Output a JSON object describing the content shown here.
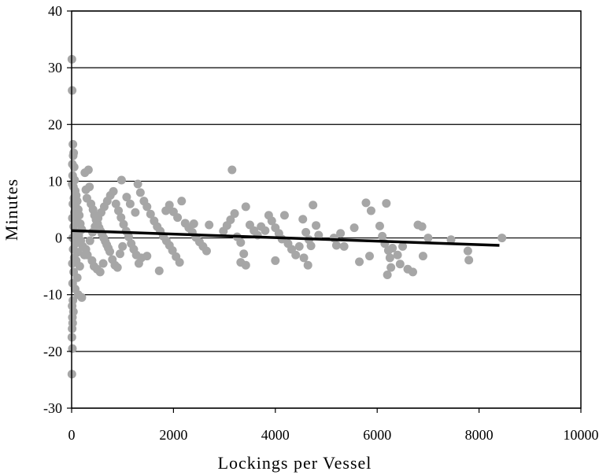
{
  "chart_data": {
    "type": "scatter",
    "xlabel": "Lockings per Vessel",
    "ylabel": "Minutes",
    "xlim": [
      0,
      10000
    ],
    "ylim": [
      -30,
      40
    ],
    "xticks": [
      "0",
      "2000",
      "4000",
      "6000",
      "8000",
      "10000"
    ],
    "yticks": [
      "40",
      "30",
      "20",
      "10",
      "0",
      "-10",
      "-20",
      "-30"
    ],
    "grid": "horizontal",
    "legend": "none",
    "point_color": "#a6a6a6",
    "trendline_color": "#000000",
    "trendline": {
      "x": [
        0,
        8400
      ],
      "y": [
        1.3,
        -1.3
      ]
    },
    "points": [
      [
        5,
        31.5
      ],
      [
        10,
        26
      ],
      [
        25,
        16.5
      ],
      [
        40,
        15
      ],
      [
        30,
        14.5
      ],
      [
        15,
        13
      ],
      [
        50,
        12.5
      ],
      [
        20,
        11
      ],
      [
        60,
        10.2
      ],
      [
        10,
        9.5
      ],
      [
        35,
        9
      ],
      [
        70,
        8.3
      ],
      [
        90,
        7.5
      ],
      [
        45,
        7
      ],
      [
        110,
        6.5
      ],
      [
        25,
        6
      ],
      [
        80,
        5.5
      ],
      [
        130,
        5
      ],
      [
        55,
        4.5
      ],
      [
        150,
        4
      ],
      [
        15,
        3.5
      ],
      [
        100,
        3
      ],
      [
        170,
        2.5
      ],
      [
        40,
        2
      ],
      [
        200,
        1.5
      ],
      [
        65,
        1
      ],
      [
        140,
        0.5
      ],
      [
        20,
        0
      ],
      [
        180,
        -0.5
      ],
      [
        75,
        -1
      ],
      [
        220,
        -1.5
      ],
      [
        30,
        -2
      ],
      [
        120,
        -2.5
      ],
      [
        250,
        -3
      ],
      [
        50,
        -3.5
      ],
      [
        90,
        -4
      ],
      [
        15,
        -4.5
      ],
      [
        160,
        -5
      ],
      [
        40,
        -6
      ],
      [
        110,
        -7
      ],
      [
        20,
        -8
      ],
      [
        70,
        -9
      ],
      [
        130,
        -10
      ],
      [
        200,
        -10.5
      ],
      [
        25,
        -11
      ],
      [
        10,
        -12
      ],
      [
        35,
        -13
      ],
      [
        15,
        -14
      ],
      [
        20,
        -15
      ],
      [
        10,
        -16
      ],
      [
        5,
        -17.5
      ],
      [
        15,
        -19.5
      ],
      [
        5,
        -24
      ],
      [
        260,
        11.5
      ],
      [
        330,
        12
      ],
      [
        280,
        8.5
      ],
      [
        350,
        9
      ],
      [
        300,
        7
      ],
      [
        380,
        6
      ],
      [
        420,
        5
      ],
      [
        450,
        4
      ],
      [
        480,
        3.2
      ],
      [
        510,
        2.5
      ],
      [
        540,
        1.8
      ],
      [
        570,
        1.2
      ],
      [
        600,
        0.6
      ],
      [
        630,
        0
      ],
      [
        660,
        -0.6
      ],
      [
        690,
        -1.2
      ],
      [
        720,
        -1.8
      ],
      [
        750,
        -2.4
      ],
      [
        310,
        -3
      ],
      [
        400,
        -4
      ],
      [
        440,
        -5
      ],
      [
        500,
        -5.5
      ],
      [
        560,
        -6
      ],
      [
        620,
        -4.5
      ],
      [
        280,
        -2
      ],
      [
        360,
        -0.5
      ],
      [
        410,
        1
      ],
      [
        460,
        2
      ],
      [
        520,
        3.5
      ],
      [
        580,
        4.5
      ],
      [
        640,
        5.5
      ],
      [
        700,
        6.5
      ],
      [
        760,
        7.5
      ],
      [
        820,
        8.2
      ],
      [
        870,
        6
      ],
      [
        920,
        4.8
      ],
      [
        970,
        3.6
      ],
      [
        1020,
        2.4
      ],
      [
        1070,
        1.2
      ],
      [
        1120,
        0.2
      ],
      [
        1170,
        -1
      ],
      [
        1220,
        -2
      ],
      [
        1270,
        -3
      ],
      [
        1320,
        -4.5
      ],
      [
        1370,
        -3.5
      ],
      [
        800,
        -3.8
      ],
      [
        850,
        -4.8
      ],
      [
        900,
        -5.2
      ],
      [
        950,
        -2.8
      ],
      [
        1000,
        -1.5
      ],
      [
        980,
        10.2
      ],
      [
        1300,
        9.5
      ],
      [
        1350,
        8
      ],
      [
        1420,
        6.5
      ],
      [
        1480,
        5.5
      ],
      [
        1550,
        4.2
      ],
      [
        1620,
        3
      ],
      [
        1680,
        2
      ],
      [
        1740,
        1.2
      ],
      [
        1800,
        0.3
      ],
      [
        1860,
        -0.5
      ],
      [
        1920,
        -1.3
      ],
      [
        1980,
        -2.2
      ],
      [
        2050,
        -3.3
      ],
      [
        2120,
        -4.3
      ],
      [
        1720,
        -5.8
      ],
      [
        1850,
        4.8
      ],
      [
        1920,
        5.8
      ],
      [
        2000,
        4.6
      ],
      [
        2080,
        3.6
      ],
      [
        2160,
        6.5
      ],
      [
        2230,
        2.6
      ],
      [
        2300,
        1.8
      ],
      [
        2370,
        1
      ],
      [
        2440,
        0.1
      ],
      [
        2510,
        -0.7
      ],
      [
        2580,
        -1.5
      ],
      [
        2650,
        -2.3
      ],
      [
        2400,
        2.5
      ],
      [
        2700,
        2.3
      ],
      [
        1480,
        -3.2
      ],
      [
        1250,
        4.5
      ],
      [
        1150,
        6
      ],
      [
        1080,
        7.2
      ],
      [
        3150,
        12
      ],
      [
        3200,
        4.3
      ],
      [
        3120,
        3.2
      ],
      [
        3050,
        2.2
      ],
      [
        2980,
        1.2
      ],
      [
        3250,
        0.2
      ],
      [
        3320,
        -0.8
      ],
      [
        3380,
        -2.8
      ],
      [
        3420,
        -4.8
      ],
      [
        3320,
        -4.3
      ],
      [
        3420,
        5.5
      ],
      [
        3500,
        2.3
      ],
      [
        3580,
        1.3
      ],
      [
        3650,
        0.5
      ],
      [
        3720,
        2
      ],
      [
        3800,
        1.3
      ],
      [
        3870,
        4
      ],
      [
        3930,
        3
      ],
      [
        4000,
        1.8
      ],
      [
        4070,
        0.8
      ],
      [
        4130,
        -0.2
      ],
      [
        4180,
        4
      ],
      [
        4000,
        -4
      ],
      [
        4250,
        -1
      ],
      [
        4320,
        -2
      ],
      [
        4400,
        -3
      ],
      [
        4470,
        -1.5
      ],
      [
        4540,
        3.3
      ],
      [
        4600,
        1
      ],
      [
        4660,
        -0.3
      ],
      [
        4700,
        -1.4
      ],
      [
        4740,
        5.8
      ],
      [
        4800,
        2.2
      ],
      [
        4850,
        0.5
      ],
      [
        4560,
        -3.5
      ],
      [
        4640,
        -4.8
      ],
      [
        5150,
        0
      ],
      [
        5200,
        -1.3
      ],
      [
        5280,
        0.8
      ],
      [
        5350,
        -1.5
      ],
      [
        5550,
        1.8
      ],
      [
        5650,
        -4.2
      ],
      [
        5780,
        6.2
      ],
      [
        5880,
        4.8
      ],
      [
        5850,
        -3.2
      ],
      [
        6050,
        2.1
      ],
      [
        6100,
        0.3
      ],
      [
        6150,
        -1
      ],
      [
        6180,
        6.1
      ],
      [
        6220,
        -2.2
      ],
      [
        6250,
        -3.5
      ],
      [
        6270,
        -5.2
      ],
      [
        6200,
        -6.5
      ],
      [
        6300,
        -1.8
      ],
      [
        6400,
        -3
      ],
      [
        6450,
        -4.6
      ],
      [
        6500,
        -1.5
      ],
      [
        6600,
        -5.5
      ],
      [
        6700,
        -6
      ],
      [
        6800,
        2.3
      ],
      [
        6880,
        2
      ],
      [
        6900,
        -3.2
      ],
      [
        7000,
        0
      ],
      [
        7450,
        -0.3
      ],
      [
        7780,
        -2.3
      ],
      [
        7800,
        -3.9
      ],
      [
        8450,
        0
      ]
    ]
  }
}
